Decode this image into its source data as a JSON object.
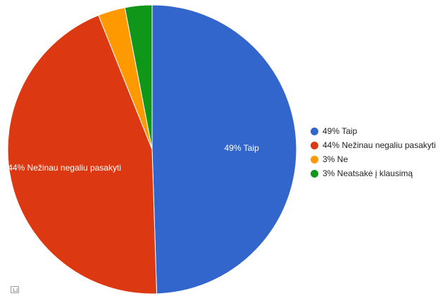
{
  "chart_data": {
    "type": "pie",
    "start_angle_deg": 0,
    "direction": "clockwise",
    "legend_position": "right",
    "slices": [
      {
        "legend": "49% Taip",
        "label": "49% Taip",
        "value": 49,
        "color": "#3366cc"
      },
      {
        "legend": "44% Nežinau negaliu pasakyti",
        "label": "44% Nežinau negaliu pasakyti",
        "value": 44,
        "color": "#dc3912"
      },
      {
        "legend": "3% Ne",
        "label": "",
        "value": 3,
        "color": "#ff9900"
      },
      {
        "legend": "3% Neatsakė į klausimą",
        "label": "",
        "value": 3,
        "color": "#109618"
      }
    ]
  }
}
